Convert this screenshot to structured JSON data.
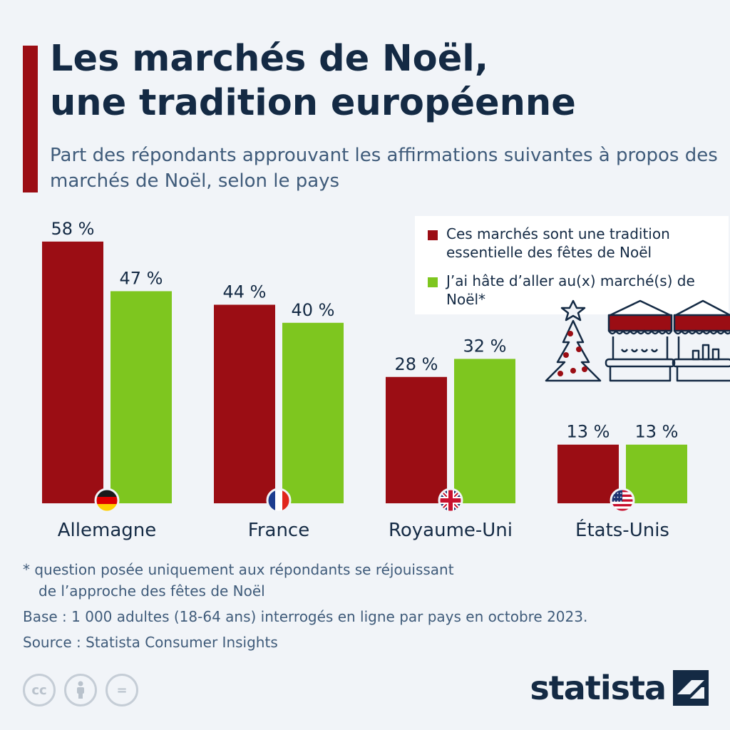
{
  "header": {
    "title_line1": "Les marchés de Noël,",
    "title_line2": "une tradition européenne",
    "subtitle": "Part des répondants approuvant les affirmations suivantes à propos des marchés de Noël, selon le pays"
  },
  "colors": {
    "accent": "#9b0d14",
    "series1": "#9b0d14",
    "series2": "#7ec61f",
    "text": "#142a44",
    "muted": "#3f5b7a",
    "background": "#f1f4f8"
  },
  "chart_data": {
    "type": "bar",
    "categories": [
      "Allemagne",
      "France",
      "Royaume-Uni",
      "États-Unis"
    ],
    "series": [
      {
        "name": "Ces marchés sont une tradition essentielle des fêtes de Noël",
        "values": [
          58,
          44,
          28,
          13
        ]
      },
      {
        "name": "J’ai hâte d’aller au(x) marché(s) de Noël*",
        "values": [
          47,
          40,
          32,
          13
        ]
      }
    ],
    "value_suffix": " %",
    "ylim": [
      0,
      60
    ],
    "grid": false,
    "legend_position": "top-right",
    "flags": [
      "germany-flag-icon",
      "france-flag-icon",
      "uk-flag-icon",
      "usa-flag-icon"
    ]
  },
  "legend": {
    "series1_label": "Ces marchés sont une tradition essentielle des fêtes de Noël",
    "series2_label": "J’ai hâte d’aller au(x) marché(s) de Noël*"
  },
  "notes": {
    "asterisk_line1": "* question posée uniquement aux répondants se réjouissant",
    "asterisk_line2": "de l’approche des fêtes de Noël",
    "base": "Base : 1 000 adultes (18-64 ans) interrogés en ligne par pays en octobre 2023.",
    "source": "Source : Statista Consumer Insights"
  },
  "license_icons": [
    "cc-icon",
    "attribution-icon",
    "no-derivatives-icon"
  ],
  "license_labels": {
    "cc": "cc",
    "nd": "="
  },
  "brand": {
    "name": "statista"
  }
}
